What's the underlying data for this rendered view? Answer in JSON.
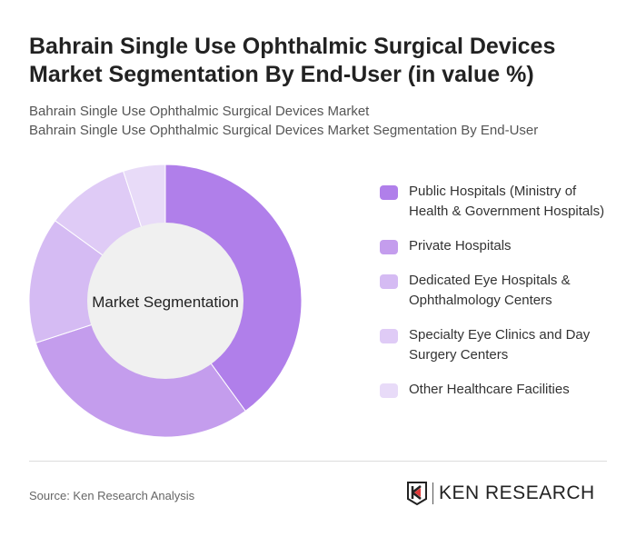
{
  "title": "Bahrain Single Use Ophthalmic Surgical Devices Market Segmentation By End-User (in value %)",
  "subtitle1": "Bahrain Single Use Ophthalmic Surgical Devices Market",
  "subtitle2": "Bahrain Single Use Ophthalmic Surgical Devices Market Segmentation By End-User",
  "source": "Source: Ken Research Analysis",
  "logo_text": "KEN RESEARCH",
  "chart_data": {
    "type": "pie",
    "donut": true,
    "center_label": "Market Segmentation",
    "legend_position": "right",
    "categories": [
      "Public Hospitals (Ministry of Health & Government Hospitals)",
      "Private Hospitals",
      "Dedicated Eye Hospitals & Ophthalmology Centers",
      "Specialty Eye Clinics and Day Surgery Centers",
      "Other Healthcare Facilities"
    ],
    "values": [
      40,
      30,
      15,
      10,
      5
    ],
    "colors": [
      "#b07fea",
      "#c49ded",
      "#d5bbf3",
      "#dfcbf6",
      "#e8dbf8"
    ]
  }
}
